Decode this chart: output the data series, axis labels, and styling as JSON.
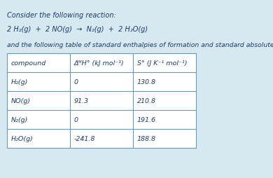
{
  "background_color": "#d6e8f0",
  "title_line1": "Consider the following reaction:",
  "reaction_parts": [
    "2 H",
    "2",
    "(g)  +  2 NO(g)  →  N",
    "2",
    "(g)  +  2 H",
    "2",
    "O(g)"
  ],
  "reaction_simple": "2 H₂(g)  +  2 NO(g)  →  N₂(g)  +  2 H₂O(g)",
  "subtitle": "and the following table of standard enthalpies of formation and standard absolute entropies:",
  "col_headers": [
    "compound",
    "ΔᴹH° (kJ mol⁻¹)",
    "S° (J K⁻¹ mol⁻¹)"
  ],
  "rows": [
    [
      "H₂(g)",
      "0",
      "130.8"
    ],
    [
      "NO(g)",
      "91.3",
      "210.8"
    ],
    [
      "N₂(g)",
      "0",
      "191.6"
    ],
    [
      "H₂O(g)",
      "-241.8",
      "188.8"
    ]
  ],
  "text_color": "#1a3a6c",
  "border_color": "#6699bb",
  "table_bg": "#e8f3f8",
  "font_size": 7.0,
  "table_font_size": 6.8
}
